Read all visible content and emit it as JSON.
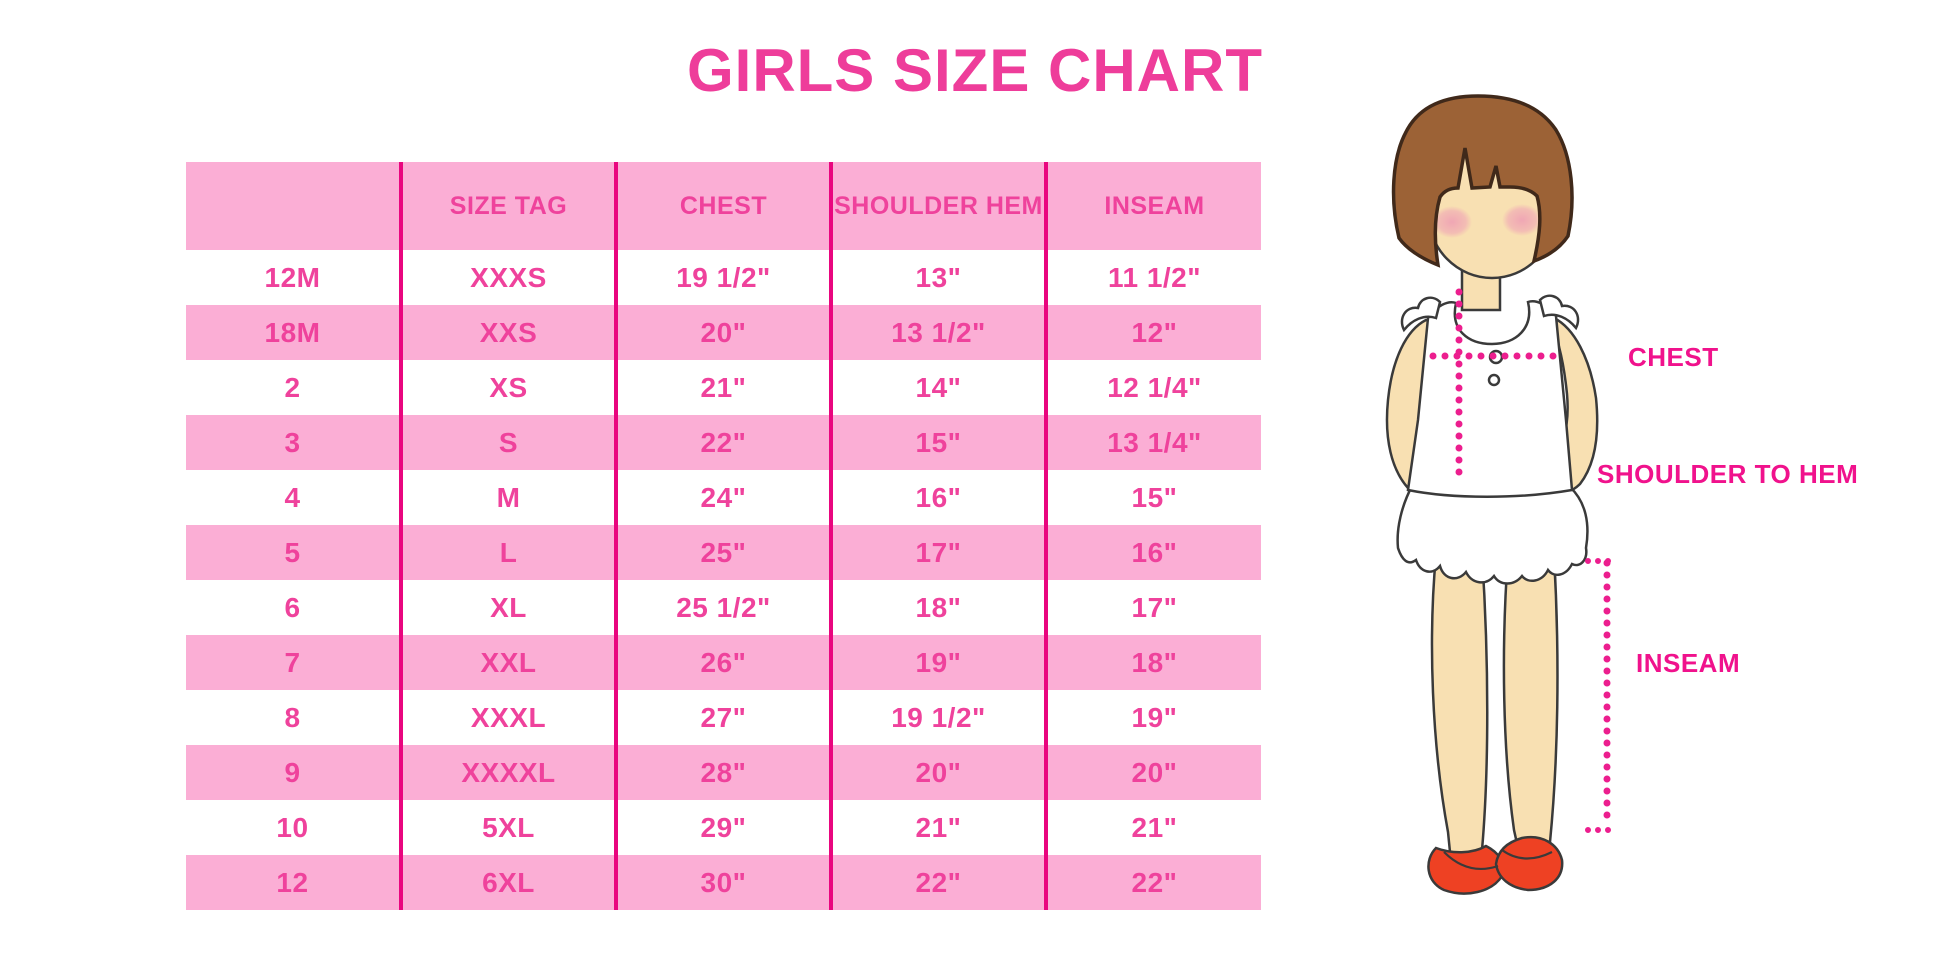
{
  "page": {
    "title": "GIRLS SIZE CHART"
  },
  "colors": {
    "magenta-title": "#ee3d9a",
    "magenta-text": "#ef429c",
    "stripe-pink": "#fbaed5",
    "divider": "#e9067f",
    "dotted-line": "#ec1e8e",
    "label-magenta": "#f0128c",
    "hair": "#9c6236",
    "hair-outline": "#40291a",
    "skin": "#f8e0b2",
    "outline": "#3a3a3a",
    "blush": "#efa0b5",
    "shoe-red": "#ee4123"
  },
  "chart_data": {
    "type": "table",
    "title": "GIRLS SIZE CHART",
    "columns": [
      "",
      "SIZE TAG",
      "CHEST",
      "SHOULDER HEM",
      "INSEAM"
    ],
    "rows": [
      [
        "12M",
        "XXXS",
        "19 1/2\"",
        "13\"",
        "11 1/2\""
      ],
      [
        "18M",
        "XXS",
        "20\"",
        "13 1/2\"",
        "12\""
      ],
      [
        "2",
        "XS",
        "21\"",
        "14\"",
        "12 1/4\""
      ],
      [
        "3",
        "S",
        "22\"",
        "15\"",
        "13 1/4\""
      ],
      [
        "4",
        "M",
        "24\"",
        "16\"",
        "15\""
      ],
      [
        "5",
        "L",
        "25\"",
        "17\"",
        "16\""
      ],
      [
        "6",
        "XL",
        "25 1/2\"",
        "18\"",
        "17\""
      ],
      [
        "7",
        "XXL",
        "26\"",
        "19\"",
        "18\""
      ],
      [
        "8",
        "XXXL",
        "27\"",
        "19 1/2\"",
        "19\""
      ],
      [
        "9",
        "XXXXL",
        "28\"",
        "20\"",
        "20\""
      ],
      [
        "10",
        "5XL",
        "29\"",
        "21\"",
        "21\""
      ],
      [
        "12",
        "6XL",
        "30\"",
        "22\"",
        "22\""
      ]
    ]
  },
  "figure": {
    "chest_label": "CHEST",
    "shoulder_to_hem_label": "SHOULDER TO HEM",
    "inseam_label": "INSEAM"
  }
}
